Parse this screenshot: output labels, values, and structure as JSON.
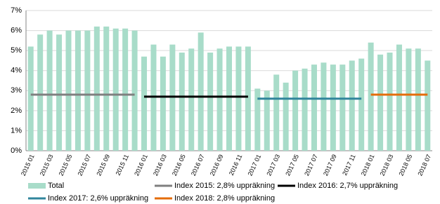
{
  "chart_data": {
    "type": "bar",
    "categories": [
      "2015 01",
      null,
      "2015 03",
      null,
      "2015 05",
      null,
      "2015 07",
      null,
      "2015 09",
      null,
      "2015 11",
      null,
      "2016 01",
      null,
      "2016 03",
      null,
      "2016 05",
      null,
      "2016 07",
      null,
      "2016 09",
      null,
      "2016 11",
      null,
      "2017 01",
      null,
      "2017 03",
      null,
      "2017 05",
      null,
      "2017 07",
      null,
      "2017 09",
      null,
      "2017 11",
      null,
      "2018 01",
      null,
      "2018 03",
      null,
      "2018 05",
      null,
      "2018 07"
    ],
    "series": [
      {
        "name": "Total",
        "type": "bar",
        "color": "#a8dcc9",
        "values": [
          5.2,
          5.8,
          6.0,
          5.8,
          6.0,
          6.0,
          6.0,
          6.2,
          6.2,
          6.1,
          6.1,
          6.0,
          4.7,
          5.3,
          4.7,
          5.3,
          4.9,
          5.1,
          5.9,
          4.9,
          5.1,
          5.2,
          5.2,
          5.2,
          3.1,
          3.0,
          3.8,
          3.4,
          4.0,
          4.1,
          4.3,
          4.4,
          4.3,
          4.3,
          4.5,
          4.6,
          5.4,
          4.8,
          4.9,
          5.3,
          5.1,
          5.1,
          4.5
        ]
      },
      {
        "name": "Index 2015: 2,8% uppräkning",
        "type": "line",
        "color": "#7f7f7f",
        "values": [
          2.8,
          2.8,
          2.8,
          2.8,
          2.8,
          2.8,
          2.8,
          2.8,
          2.8,
          2.8,
          2.8,
          2.8,
          null,
          null,
          null,
          null,
          null,
          null,
          null,
          null,
          null,
          null,
          null,
          null,
          null,
          null,
          null,
          null,
          null,
          null,
          null,
          null,
          null,
          null,
          null,
          null,
          null,
          null,
          null,
          null,
          null,
          null,
          null
        ]
      },
      {
        "name": "Index 2016: 2,7% uppräkning",
        "type": "line",
        "color": "#000000",
        "values": [
          null,
          null,
          null,
          null,
          null,
          null,
          null,
          null,
          null,
          null,
          null,
          null,
          2.7,
          2.7,
          2.7,
          2.7,
          2.7,
          2.7,
          2.7,
          2.7,
          2.7,
          2.7,
          2.7,
          2.7,
          null,
          null,
          null,
          null,
          null,
          null,
          null,
          null,
          null,
          null,
          null,
          null,
          null,
          null,
          null,
          null,
          null,
          null,
          null
        ]
      },
      {
        "name": "Index 2017: 2,6% uppräkning",
        "type": "line",
        "color": "#31859c",
        "values": [
          null,
          null,
          null,
          null,
          null,
          null,
          null,
          null,
          null,
          null,
          null,
          null,
          null,
          null,
          null,
          null,
          null,
          null,
          null,
          null,
          null,
          null,
          null,
          null,
          2.6,
          2.6,
          2.6,
          2.6,
          2.6,
          2.6,
          2.6,
          2.6,
          2.6,
          2.6,
          2.6,
          2.6,
          null,
          null,
          null,
          null,
          null,
          null,
          null
        ]
      },
      {
        "name": "Index 2018: 2,8% uppräkning",
        "type": "line",
        "color": "#e46c0a",
        "values": [
          null,
          null,
          null,
          null,
          null,
          null,
          null,
          null,
          null,
          null,
          null,
          null,
          null,
          null,
          null,
          null,
          null,
          null,
          null,
          null,
          null,
          null,
          null,
          null,
          null,
          null,
          null,
          null,
          null,
          null,
          null,
          null,
          null,
          null,
          null,
          null,
          2.8,
          2.8,
          2.8,
          2.8,
          2.8,
          2.8,
          2.8
        ]
      }
    ],
    "ylim": [
      0,
      7
    ],
    "yticks": [
      {
        "value": 0,
        "label": "0%"
      },
      {
        "value": 1,
        "label": "1%"
      },
      {
        "value": 2,
        "label": "2%"
      },
      {
        "value": 3,
        "label": "3%"
      },
      {
        "value": 4,
        "label": "4%"
      },
      {
        "value": 5,
        "label": "5%"
      },
      {
        "value": 6,
        "label": "6%"
      },
      {
        "value": 7,
        "label": "7%"
      }
    ],
    "grid": true,
    "legend": "bottom"
  }
}
